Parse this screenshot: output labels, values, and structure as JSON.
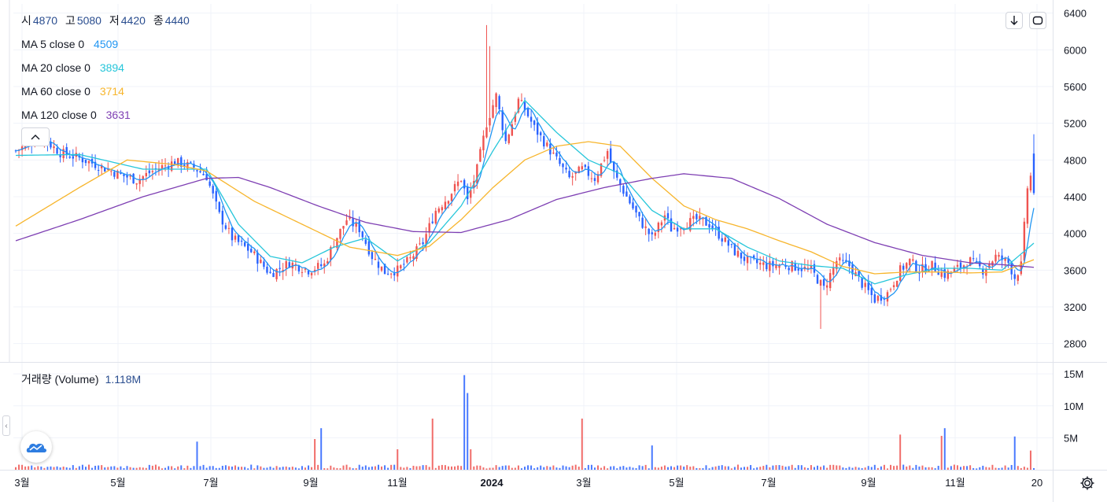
{
  "ohlc_legend": [
    {
      "key": "시",
      "value": "4870"
    },
    {
      "key": "고",
      "value": "5080"
    },
    {
      "key": "저",
      "value": "4420"
    },
    {
      "key": "종",
      "value": "4440"
    }
  ],
  "ma_legend": [
    {
      "name": "MA 5 close 0",
      "value": "4509",
      "color": "#2196f3"
    },
    {
      "name": "MA 20 close 0",
      "value": "3894",
      "color": "#26c6da"
    },
    {
      "name": "MA 60 close 0",
      "value": "3714",
      "color": "#f7b52c"
    },
    {
      "name": "MA 120 close 0",
      "value": "3631",
      "color": "#7e3fb3"
    }
  ],
  "volume_legend": {
    "name": "거래량 (Volume)",
    "value": "1.118M"
  },
  "toolbar": {
    "download_icon": "arrow-down-icon",
    "fullscreen_icon": "fullscreen-icon",
    "settings_icon": "gear-icon"
  },
  "colors": {
    "up": "#ef5350",
    "down": "#2962ff",
    "grid": "#f0f3fa",
    "axis_text": "#131722"
  },
  "chart_data": {
    "type": "candlestick",
    "x_ticks": [
      "3월",
      "5월",
      "7월",
      "9월",
      "11월",
      "2024",
      "3월",
      "5월",
      "7월",
      "9월",
      "11월",
      "20"
    ],
    "y_ticks": [
      2800,
      3200,
      3600,
      4000,
      4400,
      4800,
      5200,
      5600,
      6000,
      6400
    ],
    "ylim": [
      2600,
      6500
    ],
    "volume_ticks": [
      "5M",
      "10M",
      "15M"
    ],
    "volume_ylim": [
      0,
      16
    ],
    "grid": true,
    "close_keypoints": [
      [
        0,
        4900
      ],
      [
        8,
        5050
      ],
      [
        14,
        4880
      ],
      [
        20,
        4820
      ],
      [
        26,
        4740
      ],
      [
        32,
        4650
      ],
      [
        38,
        4580
      ],
      [
        44,
        4700
      ],
      [
        50,
        4780
      ],
      [
        56,
        4720
      ],
      [
        60,
        4620
      ],
      [
        64,
        4200
      ],
      [
        68,
        3950
      ],
      [
        74,
        3800
      ],
      [
        80,
        3560
      ],
      [
        86,
        3680
      ],
      [
        92,
        3600
      ],
      [
        97,
        3660
      ],
      [
        100,
        3900
      ],
      [
        104,
        4150
      ],
      [
        108,
        4050
      ],
      [
        112,
        3750
      ],
      [
        116,
        3580
      ],
      [
        120,
        3600
      ],
      [
        124,
        3720
      ],
      [
        128,
        3900
      ],
      [
        132,
        4250
      ],
      [
        136,
        4400
      ],
      [
        140,
        4600
      ],
      [
        142,
        4350
      ],
      [
        145,
        4700
      ],
      [
        148,
        5200
      ],
      [
        151,
        5500
      ],
      [
        154,
        5000
      ],
      [
        156,
        5200
      ],
      [
        158,
        5450
      ],
      [
        160,
        5350
      ],
      [
        163,
        5150
      ],
      [
        166,
        5000
      ],
      [
        170,
        4800
      ],
      [
        174,
        4600
      ],
      [
        178,
        4700
      ],
      [
        182,
        4600
      ],
      [
        186,
        4900
      ],
      [
        188,
        4650
      ],
      [
        192,
        4400
      ],
      [
        196,
        4150
      ],
      [
        200,
        3950
      ],
      [
        204,
        4200
      ],
      [
        206,
        4050
      ],
      [
        210,
        4100
      ],
      [
        214,
        4150
      ],
      [
        218,
        4100
      ],
      [
        222,
        3950
      ],
      [
        226,
        3800
      ],
      [
        230,
        3700
      ],
      [
        236,
        3650
      ],
      [
        242,
        3660
      ],
      [
        250,
        3600
      ],
      [
        254,
        3400
      ],
      [
        258,
        3700
      ],
      [
        262,
        3650
      ],
      [
        266,
        3450
      ],
      [
        270,
        3280
      ],
      [
        274,
        3350
      ],
      [
        278,
        3600
      ],
      [
        281,
        3700
      ],
      [
        284,
        3600
      ],
      [
        288,
        3650
      ],
      [
        292,
        3550
      ],
      [
        296,
        3620
      ],
      [
        300,
        3700
      ],
      [
        304,
        3600
      ],
      [
        308,
        3750
      ],
      [
        312,
        3680
      ],
      [
        314,
        3520
      ],
      [
        316,
        3650
      ],
      [
        318,
        4500
      ],
      [
        319,
        4620
      ],
      [
        320,
        4440
      ]
    ],
    "ma_series": [
      {
        "name": "MA 20",
        "keypoints": [
          [
            0,
            4850
          ],
          [
            20,
            4860
          ],
          [
            40,
            4700
          ],
          [
            60,
            4700
          ],
          [
            70,
            4100
          ],
          [
            80,
            3750
          ],
          [
            90,
            3680
          ],
          [
            100,
            3850
          ],
          [
            110,
            3950
          ],
          [
            120,
            3700
          ],
          [
            130,
            3900
          ],
          [
            140,
            4300
          ],
          [
            150,
            4900
          ],
          [
            160,
            5450
          ],
          [
            170,
            5100
          ],
          [
            180,
            4800
          ],
          [
            190,
            4650
          ],
          [
            200,
            4250
          ],
          [
            210,
            4050
          ],
          [
            220,
            4050
          ],
          [
            230,
            3850
          ],
          [
            240,
            3700
          ],
          [
            250,
            3650
          ],
          [
            260,
            3620
          ],
          [
            270,
            3450
          ],
          [
            280,
            3550
          ],
          [
            290,
            3620
          ],
          [
            300,
            3620
          ],
          [
            310,
            3600
          ],
          [
            320,
            3894
          ]
        ]
      },
      {
        "name": "MA 60",
        "keypoints": [
          [
            0,
            4080
          ],
          [
            20,
            4500
          ],
          [
            35,
            4800
          ],
          [
            50,
            4750
          ],
          [
            60,
            4680
          ],
          [
            75,
            4350
          ],
          [
            90,
            4100
          ],
          [
            105,
            3850
          ],
          [
            120,
            3760
          ],
          [
            130,
            3860
          ],
          [
            140,
            4150
          ],
          [
            150,
            4500
          ],
          [
            160,
            4800
          ],
          [
            170,
            4950
          ],
          [
            180,
            5000
          ],
          [
            190,
            4950
          ],
          [
            200,
            4600
          ],
          [
            210,
            4300
          ],
          [
            220,
            4150
          ],
          [
            230,
            4050
          ],
          [
            240,
            3920
          ],
          [
            250,
            3800
          ],
          [
            260,
            3640
          ],
          [
            270,
            3560
          ],
          [
            280,
            3580
          ],
          [
            290,
            3580
          ],
          [
            300,
            3570
          ],
          [
            310,
            3580
          ],
          [
            320,
            3714
          ]
        ]
      },
      {
        "name": "MA 120",
        "keypoints": [
          [
            0,
            3920
          ],
          [
            20,
            4150
          ],
          [
            40,
            4400
          ],
          [
            60,
            4600
          ],
          [
            70,
            4610
          ],
          [
            80,
            4500
          ],
          [
            95,
            4300
          ],
          [
            110,
            4120
          ],
          [
            125,
            4020
          ],
          [
            140,
            4010
          ],
          [
            155,
            4150
          ],
          [
            170,
            4370
          ],
          [
            185,
            4500
          ],
          [
            200,
            4600
          ],
          [
            210,
            4650
          ],
          [
            225,
            4600
          ],
          [
            240,
            4380
          ],
          [
            255,
            4100
          ],
          [
            270,
            3900
          ],
          [
            285,
            3760
          ],
          [
            300,
            3680
          ],
          [
            310,
            3660
          ],
          [
            320,
            3631
          ]
        ]
      }
    ],
    "volume_spikes": [
      [
        57,
        4.4
      ],
      [
        94,
        4.8
      ],
      [
        96,
        6.5
      ],
      [
        120,
        3.2
      ],
      [
        131,
        8.0
      ],
      [
        141,
        14.8
      ],
      [
        142,
        12.0
      ],
      [
        143,
        3.2
      ],
      [
        178,
        8.0
      ],
      [
        200,
        3.8
      ],
      [
        278,
        5.5
      ],
      [
        292,
        6.5
      ],
      [
        291,
        5.3
      ],
      [
        314,
        5.2
      ],
      [
        319,
        3.0
      ]
    ]
  }
}
